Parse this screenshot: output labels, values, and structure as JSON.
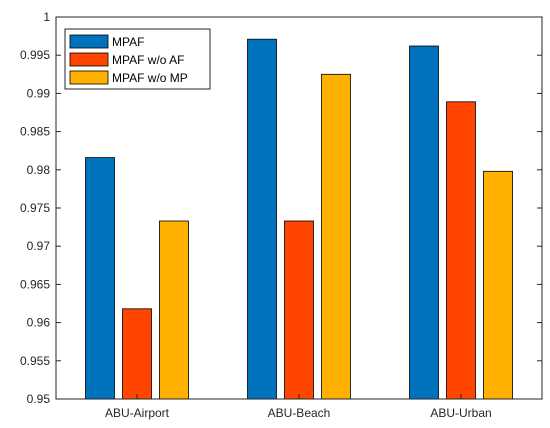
{
  "chart_data": {
    "type": "bar",
    "categories": [
      "ABU-Airport",
      "ABU-Beach",
      "ABU-Urban"
    ],
    "series": [
      {
        "name": "MPAF",
        "color": "#0072BD",
        "values": [
          0.9816,
          0.9971,
          0.9962
        ]
      },
      {
        "name": "MPAF w/o AF",
        "color": "#FF4500",
        "values": [
          0.9618,
          0.9733,
          0.9889
        ]
      },
      {
        "name": "MPAF w/o MP",
        "color": "#FFB000",
        "values": [
          0.9733,
          0.9925,
          0.9798
        ]
      }
    ],
    "ylim": [
      0.95,
      1.0
    ],
    "yticks": [
      "0.95",
      "0.955",
      "0.96",
      "0.965",
      "0.97",
      "0.975",
      "0.98",
      "0.985",
      "0.99",
      "0.995",
      "1"
    ],
    "grid": false,
    "legend_position": "top-left"
  }
}
